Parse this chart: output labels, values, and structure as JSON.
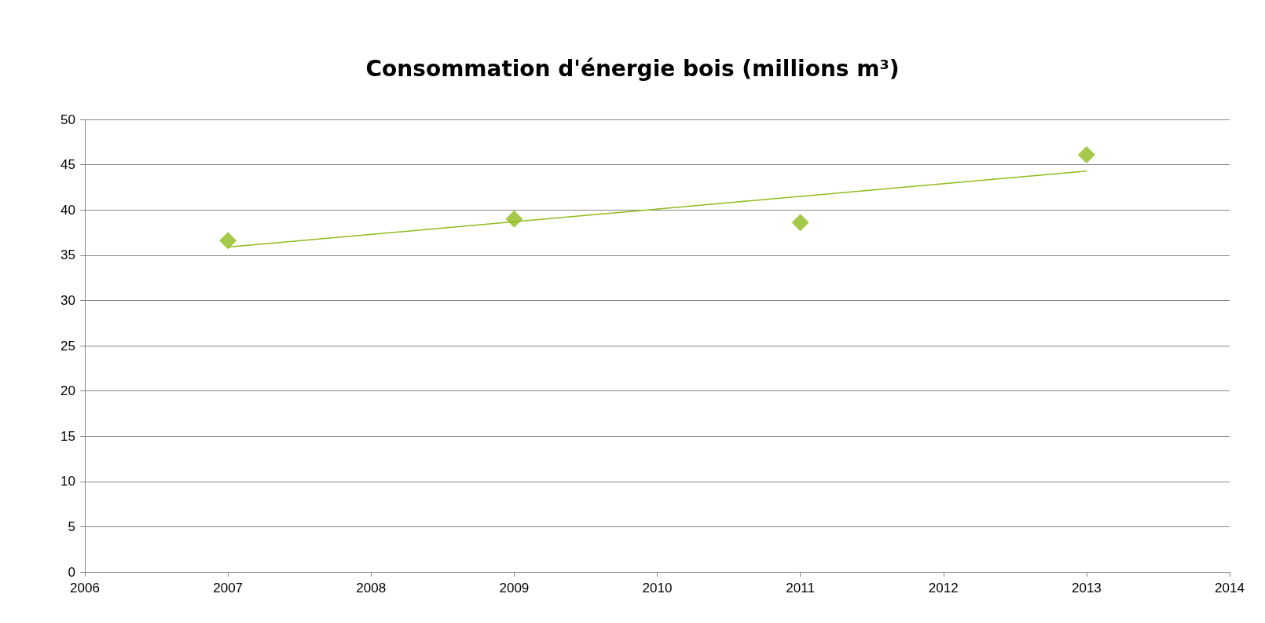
{
  "chart_data": {
    "type": "scatter",
    "title": "Consommation d'énergie bois (millions m³)",
    "xlim": [
      2006,
      2014
    ],
    "xticks": [
      2006,
      2007,
      2008,
      2009,
      2010,
      2011,
      2012,
      2013,
      2014
    ],
    "ylim": [
      0,
      50
    ],
    "yticks": [
      0,
      5,
      10,
      15,
      20,
      25,
      30,
      35,
      40,
      45,
      50
    ],
    "grid": "y",
    "marker": "diamond",
    "series": [
      {
        "color": "#8fbc1a",
        "x": [
          2007,
          2009,
          2011,
          2013
        ],
        "values": [
          36.6,
          39.0,
          38.6,
          46.1
        ]
      },
      {
        "type": "line",
        "color": "#8fbc1a",
        "x": [
          2007,
          2013
        ],
        "values": [
          35.9,
          44.3
        ],
        "marker": "none",
        "line_style": "solid"
      }
    ]
  }
}
